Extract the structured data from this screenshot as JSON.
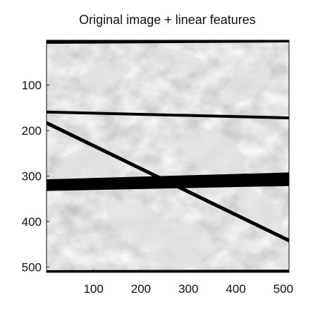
{
  "chart_data": {
    "type": "image-with-lines",
    "title": "Original image + linear features",
    "xlim": [
      1,
      512
    ],
    "ylim": [
      1,
      512
    ],
    "y_reversed": true,
    "xticks": [
      100,
      200,
      300,
      400,
      500
    ],
    "yticks": [
      100,
      200,
      300,
      400,
      500
    ],
    "grid": false,
    "colors": {
      "line": "#000000",
      "background": "#ffffff",
      "image_light": "#f4f4f4",
      "image_mid": "#dcdcdc",
      "image_dark": "#bdbdbd"
    },
    "series": [
      {
        "x": [
          1,
          512
        ],
        "y": [
          5,
          2
        ],
        "width": 5
      },
      {
        "x": [
          1,
          512
        ],
        "y": [
          159,
          172
        ],
        "width": 4
      },
      {
        "x": [
          1,
          512
        ],
        "y": [
          183,
          442
        ],
        "width": 5
      },
      {
        "x": [
          1,
          512
        ],
        "y": [
          311,
          296
        ],
        "width": 5
      },
      {
        "x": [
          1,
          512
        ],
        "y": [
          314,
          300
        ],
        "width": 5
      },
      {
        "x": [
          1,
          512
        ],
        "y": [
          317,
          304
        ],
        "width": 5
      },
      {
        "x": [
          1,
          512
        ],
        "y": [
          320,
          308
        ],
        "width": 5
      },
      {
        "x": [
          1,
          512
        ],
        "y": [
          323,
          311
        ],
        "width": 5
      },
      {
        "x": [
          1,
          512
        ],
        "y": [
          326,
          314
        ],
        "width": 5
      },
      {
        "x": [
          1,
          512
        ],
        "y": [
          329,
          318
        ],
        "width": 5
      },
      {
        "x": [
          1,
          512
        ],
        "y": [
          511,
          510
        ],
        "width": 5
      }
    ]
  }
}
